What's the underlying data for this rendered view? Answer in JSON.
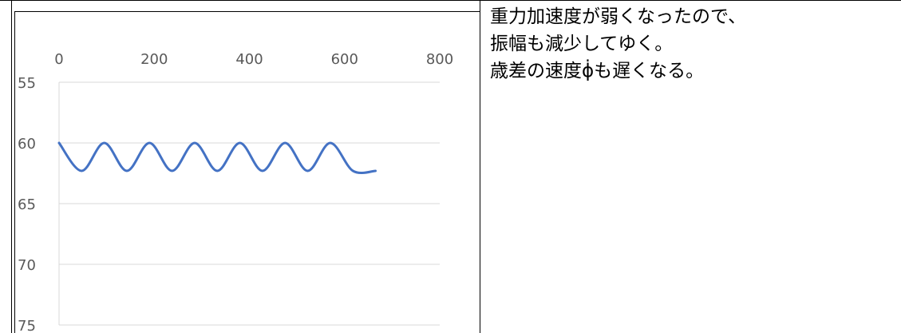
{
  "chart_data": {
    "type": "line",
    "x_axis": {
      "position": "top",
      "min": 0,
      "max": 800,
      "ticks": [
        "0",
        "200",
        "400",
        "600",
        "800"
      ]
    },
    "y_axis": {
      "reversed": true,
      "min": 55,
      "max": 75,
      "ticks": [
        "55",
        "60",
        "65",
        "70",
        "75"
      ]
    },
    "grid": true,
    "series": [
      {
        "color": "#4472C4",
        "x": [
          0,
          47.5,
          95,
          142.5,
          190,
          237.5,
          285,
          332.5,
          380,
          427.5,
          475,
          522.5,
          570,
          617.5,
          665
        ],
        "y": [
          60,
          62.3,
          60,
          62.3,
          60,
          62.3,
          60,
          62.3,
          60,
          62.3,
          60,
          62.3,
          60,
          62.3,
          62.3
        ]
      }
    ]
  },
  "notes": {
    "lines": [
      "重力加速度が弱くなったので、",
      "振幅も減少してゆく。",
      "歳差の速度ϕ̇も遅くなる。"
    ]
  }
}
